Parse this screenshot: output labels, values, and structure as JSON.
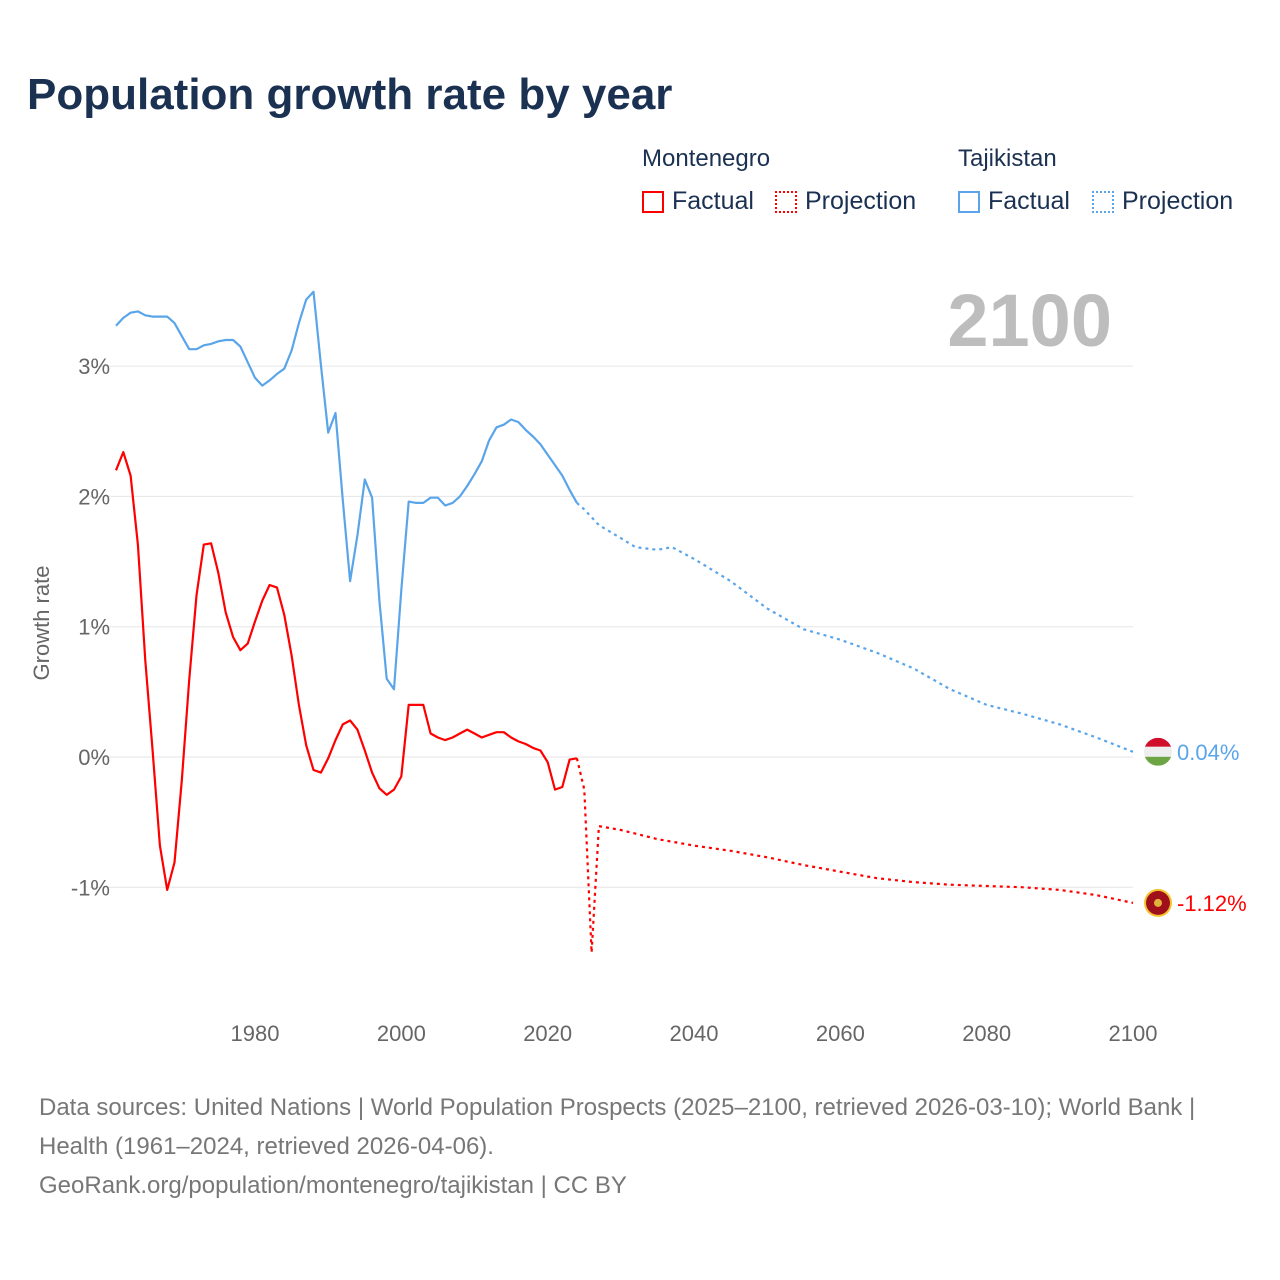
{
  "title": "Population growth rate by year",
  "year_display": "2100",
  "legend": {
    "groups": [
      {
        "name": "Montenegro",
        "factual": "Factual",
        "projection": "Projection",
        "color": "#ff0000"
      },
      {
        "name": "Tajikistan",
        "factual": "Factual",
        "projection": "Projection",
        "color": "#5aa5ea"
      }
    ]
  },
  "footer": {
    "sources": "Data sources: United Nations | World Population Prospects (2025–2100, retrieved 2026-03-10); World Bank | Health (1961–2024, retrieved 2026-04-06).",
    "url": "GeoRank.org/population/montenegro/tajikistan | CC BY"
  },
  "chart_data": {
    "type": "line",
    "title": "Population growth rate by year",
    "xlabel": "",
    "ylabel": "Growth rate",
    "xlim": [
      1961,
      2100
    ],
    "ylim": [
      -1.7,
      3.7
    ],
    "x_ticks": [
      1980,
      2000,
      2020,
      2040,
      2060,
      2080,
      2100
    ],
    "y_ticks": [
      {
        "v": -1,
        "label": "-1%"
      },
      {
        "v": 0,
        "label": "0%"
      },
      {
        "v": 1,
        "label": "1%"
      },
      {
        "v": 2,
        "label": "2%"
      },
      {
        "v": 3,
        "label": "3%"
      }
    ],
    "grid": true,
    "series": [
      {
        "name": "Montenegro",
        "color": "#ff0000",
        "end_label": "-1.12%",
        "factual": {
          "start": 1961,
          "values": [
            2.2,
            2.34,
            2.16,
            1.63,
            0.74,
            0.05,
            -0.68,
            -1.02,
            -0.81,
            -0.18,
            0.59,
            1.24,
            1.63,
            1.64,
            1.41,
            1.11,
            0.92,
            0.82,
            0.87,
            1.04,
            1.2,
            1.32,
            1.3,
            1.09,
            0.78,
            0.4,
            0.09,
            -0.1,
            -0.12,
            -0.01,
            0.13,
            0.25,
            0.28,
            0.21,
            0.05,
            -0.12,
            -0.24,
            -0.29,
            -0.25,
            -0.15,
            0.4,
            0.4,
            0.4,
            0.18,
            0.15,
            0.13,
            0.15,
            0.18,
            0.21,
            0.18,
            0.15,
            0.17,
            0.19,
            0.19,
            0.15,
            0.12,
            0.1,
            0.07,
            0.05,
            -0.04,
            -0.25,
            -0.23,
            -0.02,
            -0.01
          ]
        },
        "projection": [
          [
            2024,
            -0.01
          ],
          [
            2025,
            -0.25
          ],
          [
            2026,
            -1.5
          ],
          [
            2027,
            -0.53
          ],
          [
            2030,
            -0.56
          ],
          [
            2035,
            -0.63
          ],
          [
            2040,
            -0.68
          ],
          [
            2045,
            -0.72
          ],
          [
            2050,
            -0.77
          ],
          [
            2055,
            -0.83
          ],
          [
            2060,
            -0.88
          ],
          [
            2065,
            -0.93
          ],
          [
            2070,
            -0.96
          ],
          [
            2075,
            -0.98
          ],
          [
            2080,
            -0.99
          ],
          [
            2085,
            -1.0
          ],
          [
            2090,
            -1.02
          ],
          [
            2095,
            -1.06
          ],
          [
            2100,
            -1.12
          ]
        ]
      },
      {
        "name": "Tajikistan",
        "color": "#5aa5ea",
        "end_label": "0.04%",
        "factual": {
          "start": 1961,
          "values": [
            3.31,
            3.37,
            3.41,
            3.42,
            3.39,
            3.38,
            3.38,
            3.38,
            3.33,
            3.23,
            3.13,
            3.13,
            3.16,
            3.17,
            3.19,
            3.2,
            3.2,
            3.15,
            3.03,
            2.91,
            2.85,
            2.89,
            2.94,
            2.98,
            3.12,
            3.33,
            3.51,
            3.57,
            3.01,
            2.49,
            2.64,
            1.97,
            1.35,
            1.7,
            2.13,
            1.99,
            1.2,
            0.6,
            0.52,
            1.28,
            1.96,
            1.95,
            1.95,
            1.99,
            1.99,
            1.93,
            1.95,
            2.0,
            2.08,
            2.17,
            2.27,
            2.43,
            2.53,
            2.55,
            2.59,
            2.57,
            2.51,
            2.46,
            2.4,
            2.32,
            2.24,
            2.16,
            2.05,
            1.95
          ]
        },
        "projection": [
          [
            2024,
            1.95
          ],
          [
            2025,
            1.9
          ],
          [
            2027,
            1.78
          ],
          [
            2030,
            1.68
          ],
          [
            2032,
            1.61
          ],
          [
            2035,
            1.59
          ],
          [
            2037,
            1.61
          ],
          [
            2040,
            1.52
          ],
          [
            2045,
            1.35
          ],
          [
            2050,
            1.14
          ],
          [
            2055,
            0.98
          ],
          [
            2060,
            0.9
          ],
          [
            2065,
            0.8
          ],
          [
            2070,
            0.68
          ],
          [
            2075,
            0.52
          ],
          [
            2080,
            0.4
          ],
          [
            2085,
            0.33
          ],
          [
            2090,
            0.25
          ],
          [
            2095,
            0.15
          ],
          [
            2100,
            0.04
          ]
        ]
      }
    ]
  }
}
